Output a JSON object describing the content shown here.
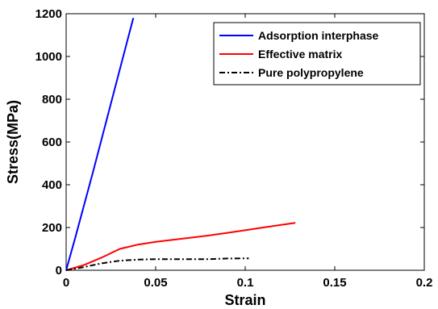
{
  "chart_data": {
    "type": "line",
    "title": "",
    "xlabel": "Strain",
    "ylabel": "Stress(MPa)",
    "xlim": [
      0,
      0.2
    ],
    "ylim": [
      0,
      1200
    ],
    "xticks": [
      0,
      0.05,
      0.1,
      0.15,
      0.2
    ],
    "xtick_labels": [
      "0",
      "0.05",
      "0.1",
      "0.15",
      "0.2"
    ],
    "yticks": [
      0,
      200,
      400,
      600,
      800,
      1000,
      1200
    ],
    "ytick_labels": [
      "0",
      "200",
      "400",
      "600",
      "800",
      "1000",
      "1200"
    ],
    "grid": false,
    "legend_position": "top-right",
    "series": [
      {
        "name": "Adsorption interphase",
        "color": "#0000ff",
        "dash": "solid",
        "x": [
          0,
          0.005,
          0.01,
          0.015,
          0.02,
          0.025,
          0.03,
          0.035,
          0.0375
        ],
        "y": [
          0,
          150,
          305,
          460,
          620,
          780,
          940,
          1100,
          1180
        ]
      },
      {
        "name": "Effective matrix",
        "color": "#ff0000",
        "dash": "solid",
        "x": [
          0,
          0.01,
          0.02,
          0.03,
          0.04,
          0.05,
          0.06,
          0.07,
          0.08,
          0.09,
          0.1,
          0.11,
          0.12,
          0.128
        ],
        "y": [
          0,
          25,
          60,
          100,
          120,
          133,
          143,
          153,
          163,
          175,
          187,
          200,
          212,
          222
        ]
      },
      {
        "name": "Pure polypropylene",
        "color": "#000000",
        "dash": "dashdot",
        "x": [
          0,
          0.01,
          0.02,
          0.03,
          0.04,
          0.05,
          0.06,
          0.07,
          0.08,
          0.09,
          0.1,
          0.102
        ],
        "y": [
          0,
          15,
          33,
          45,
          50,
          52,
          52,
          52,
          52,
          55,
          56,
          56
        ]
      }
    ]
  }
}
